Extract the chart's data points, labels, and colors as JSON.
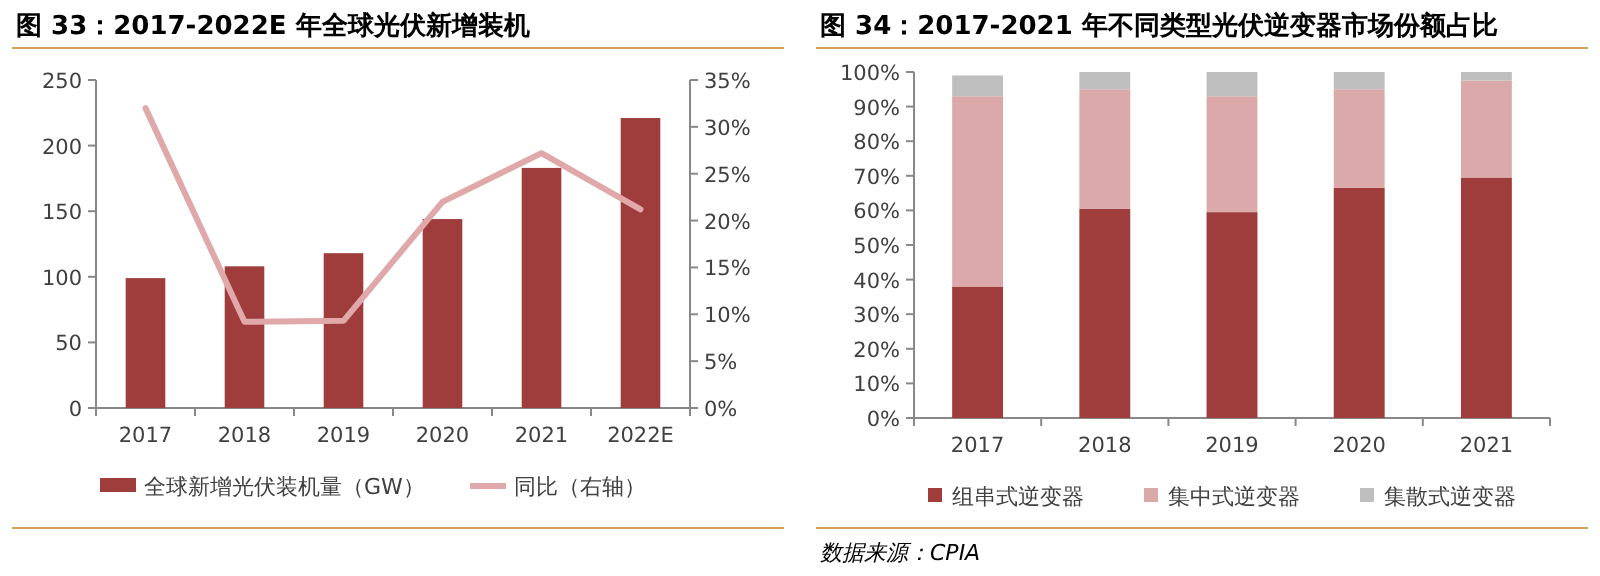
{
  "chart_data": [
    {
      "type": "bar",
      "title": "图 33：2017-2022E 年全球光伏新增装机",
      "categories": [
        "2017",
        "2018",
        "2019",
        "2020",
        "2021",
        "2022E"
      ],
      "series": [
        {
          "name": "全球新增光伏装机量（GW）",
          "color": "#9e3d3b",
          "values": [
            99,
            108,
            118,
            144,
            183,
            221
          ]
        },
        {
          "name": "同比（右轴）",
          "type": "line",
          "axis": "y2",
          "color": "#e0a8a8",
          "values": [
            32,
            9.2,
            9.3,
            22,
            27.2,
            21.2
          ]
        }
      ],
      "ylim": [
        0,
        250
      ],
      "yticks": [
        0,
        50,
        100,
        150,
        200,
        250
      ],
      "y2lim": [
        0,
        35
      ],
      "y2ticks": [
        {
          "value": 0,
          "label": "0%"
        },
        {
          "value": 5,
          "label": "5%"
        },
        {
          "value": 10,
          "label": "10%"
        },
        {
          "value": 15,
          "label": "15%"
        },
        {
          "value": 20,
          "label": "20%"
        },
        {
          "value": 25,
          "label": "25%"
        },
        {
          "value": 30,
          "label": "30%"
        },
        {
          "value": 35,
          "label": "35%"
        }
      ],
      "legend": "bottom",
      "marker": "none"
    },
    {
      "type": "bar",
      "stacked": true,
      "title": "图 34：2017-2021 年不同类型光伏逆变器市场份额占比",
      "categories": [
        "2017",
        "2018",
        "2019",
        "2020",
        "2021"
      ],
      "series": [
        {
          "name": "组串式逆变器",
          "color": "#9e3d3b",
          "values": [
            38,
            60.5,
            59.5,
            66.5,
            69.5
          ]
        },
        {
          "name": "集中式逆变器",
          "color": "#dba9a9",
          "values": [
            55,
            34.5,
            33.5,
            28.5,
            28
          ]
        },
        {
          "name": "集散式逆变器",
          "color": "#bfbfbf",
          "values": [
            6,
            5,
            7,
            5,
            2.5
          ]
        }
      ],
      "ylim": [
        0,
        100
      ],
      "yticks": [
        {
          "value": 0,
          "label": "0%"
        },
        {
          "value": 10,
          "label": "10%"
        },
        {
          "value": 20,
          "label": "20%"
        },
        {
          "value": 30,
          "label": "30%"
        },
        {
          "value": 40,
          "label": "40%"
        },
        {
          "value": 50,
          "label": "50%"
        },
        {
          "value": 60,
          "label": "60%"
        },
        {
          "value": 70,
          "label": "70%"
        },
        {
          "value": 80,
          "label": "80%"
        },
        {
          "value": 90,
          "label": "90%"
        },
        {
          "value": 100,
          "label": "100%"
        }
      ],
      "legend": "bottom",
      "annotations": [
        "数据来源：CPIA"
      ]
    }
  ]
}
